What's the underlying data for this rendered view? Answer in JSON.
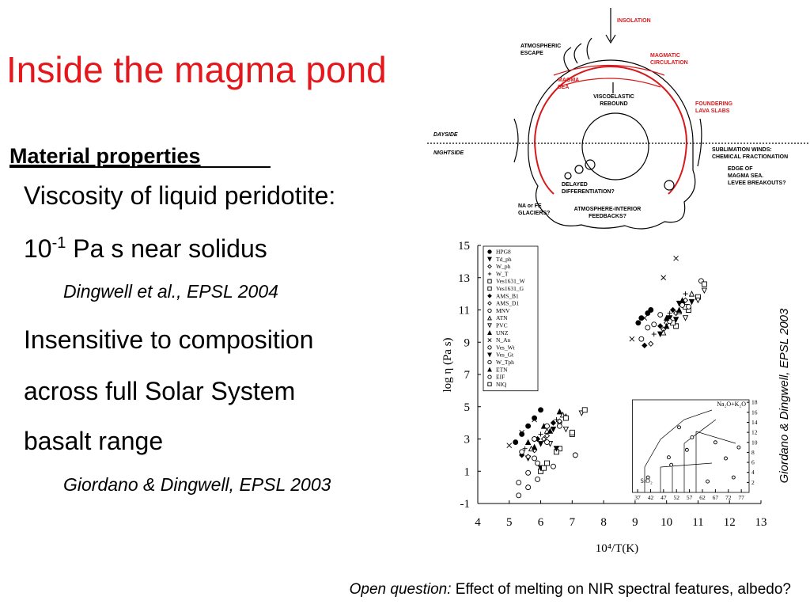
{
  "slide": {
    "title": "Inside the magma pond",
    "subtitle": "Material properties",
    "bullets": [
      {
        "text": "Viscosity of liquid peridotite:"
      },
      {
        "base": "10",
        "sup": "-1",
        "rest": " Pa s near solidus"
      },
      {
        "ref": "Dingwell et al., EPSL 2004"
      },
      {
        "text": "Insensitive to composition"
      },
      {
        "text": "across full Solar System"
      },
      {
        "text": "basalt range"
      },
      {
        "ref": "Giordano & Dingwell, EPSL 2003"
      }
    ],
    "side_caption": "Giordano & Dingwell, EPSL 2003",
    "footer": {
      "lead": "Open question:",
      "text": " Effect of melting on NIR spectral features, albedo?"
    }
  },
  "diagram": {
    "labels": [
      {
        "lines": [
          "INSOLATION"
        ],
        "color": "#d7191c"
      },
      {
        "lines": [
          "ATMOSPHERIC",
          "ESCAPE"
        ],
        "color": "#000000"
      },
      {
        "lines": [
          "MAGMATIC",
          "CIRCULATION"
        ],
        "color": "#d7191c"
      },
      {
        "lines": [
          "MAGMA",
          "SEA"
        ],
        "color": "#d7191c"
      },
      {
        "lines": [
          "VISCOELASTIC",
          "REBOUND"
        ],
        "color": "#000000"
      },
      {
        "lines": [
          "FOUNDERING",
          "LAVA SLABS"
        ],
        "color": "#d7191c"
      },
      {
        "lines": [
          "DAYSIDE"
        ],
        "color": "#000000"
      },
      {
        "lines": [
          "NIGHTSIDE"
        ],
        "color": "#000000"
      },
      {
        "lines": [
          "SUBLIMATION WINDS:",
          "CHEMICAL FRACTIONATION"
        ],
        "color": "#000000"
      },
      {
        "lines": [
          "EDGE OF",
          "MAGMA SEA.",
          "LEVEE BREAKOUTS?"
        ],
        "color": "#000000"
      },
      {
        "lines": [
          "DELAYED",
          "DIFFERENTIATION?"
        ],
        "color": "#000000"
      },
      {
        "lines": [
          "NA or FE",
          "GLACIERS?"
        ],
        "color": "#000000"
      },
      {
        "lines": [
          "ATMOSPHERE-INTERIOR",
          "FEEDBACKS?"
        ],
        "color": "#000000"
      }
    ]
  },
  "chart_data": [
    {
      "type": "scatter",
      "xlabel": "10⁴/T(K)",
      "ylabel": "log η (Pa s)",
      "xlim": [
        4,
        13
      ],
      "ylim": [
        -1,
        15
      ],
      "xticks": [
        4,
        5,
        6,
        7,
        8,
        9,
        10,
        11,
        12,
        13
      ],
      "yticks": [
        -1,
        1,
        3,
        5,
        7,
        9,
        11,
        13,
        15
      ],
      "legend": "upper left",
      "series": [
        {
          "name": "HPG8",
          "marker": "circle",
          "color": "#000000",
          "x": [
            5.2,
            5.4,
            5.6,
            5.8,
            6.0,
            9.1,
            9.2,
            9.4,
            9.5
          ],
          "values": [
            2.8,
            3.3,
            3.8,
            4.3,
            4.8,
            10.2,
            10.5,
            10.8,
            11.0
          ]
        },
        {
          "name": "Td_ph",
          "marker": "triangle-down",
          "color": "#000000",
          "x": [
            5.6,
            6.0,
            6.4,
            9.8,
            10.1,
            10.4
          ],
          "values": [
            1.8,
            2.7,
            3.6,
            9.5,
            10.5,
            11.4
          ]
        },
        {
          "name": "W_ph",
          "marker": "diamond-open",
          "color": "#000000",
          "x": [
            5.8,
            6.2,
            6.6,
            9.9,
            10.3,
            10.6
          ],
          "values": [
            2.3,
            3.2,
            4.0,
            9.8,
            10.8,
            11.6
          ]
        },
        {
          "name": "W_T",
          "marker": "plus",
          "color": "#000000",
          "x": [
            5.5,
            6.0,
            6.5,
            9.6,
            10.1,
            10.6
          ],
          "values": [
            2.4,
            3.3,
            4.2,
            9.5,
            10.8,
            12.0
          ]
        },
        {
          "name": "Ves1631_W",
          "marker": "square-open",
          "color": "#000000",
          "x": [
            6.2,
            6.6,
            7.0,
            10.3,
            10.7,
            11.0
          ],
          "values": [
            1.5,
            2.4,
            3.3,
            10.0,
            11.0,
            11.8
          ]
        },
        {
          "name": "Ves1631_G",
          "marker": "square-open",
          "color": "#000000",
          "x": [
            6.0,
            6.5,
            7.0,
            10.2,
            10.6
          ],
          "values": [
            1.0,
            2.2,
            3.4,
            10.2,
            11.2
          ]
        },
        {
          "name": "AMS_B1",
          "marker": "diamond",
          "color": "#000000",
          "x": [
            5.4,
            5.9,
            6.4,
            9.3,
            9.8,
            10.2
          ],
          "values": [
            2.0,
            3.0,
            4.0,
            8.8,
            10.0,
            11.0
          ]
        },
        {
          "name": "AMS_D1",
          "marker": "diamond-open",
          "color": "#000000",
          "x": [
            5.6,
            6.1,
            6.6,
            9.5,
            10.0,
            10.5
          ],
          "values": [
            1.9,
            3.0,
            4.1,
            8.9,
            10.2,
            11.4
          ]
        },
        {
          "name": "MNV",
          "marker": "circle-open",
          "color": "#000000",
          "x": [
            5.3,
            5.6,
            5.9,
            9.2,
            9.6
          ],
          "values": [
            0.3,
            0.9,
            1.5,
            9.2,
            10.1
          ]
        },
        {
          "name": "ATN",
          "marker": "triangle-up-open",
          "color": "#000000",
          "x": [
            5.7,
            6.2,
            6.7,
            9.9,
            10.4,
            10.8
          ],
          "values": [
            2.4,
            3.5,
            4.5,
            9.6,
            10.9,
            12.0
          ]
        },
        {
          "name": "PVC",
          "marker": "triangle-down-open",
          "color": "#000000",
          "x": [
            6.3,
            6.8,
            7.3,
            10.6,
            11.0,
            11.2
          ],
          "values": [
            2.7,
            3.6,
            4.6,
            10.5,
            11.6,
            12.2
          ]
        },
        {
          "name": "UNZ",
          "marker": "triangle-up",
          "color": "#000000",
          "x": [
            5.8,
            6.3,
            6.8,
            10.0,
            10.4
          ],
          "values": [
            2.5,
            3.5,
            4.4,
            10.0,
            11.0
          ]
        },
        {
          "name": "N_An",
          "marker": "x",
          "color": "#000000",
          "x": [
            5.0,
            5.4,
            5.8,
            8.9,
            9.3,
            9.9,
            10.3
          ],
          "values": [
            2.6,
            3.4,
            4.2,
            9.2,
            10.5,
            13.0,
            14.2
          ]
        },
        {
          "name": "Ves_Wt",
          "marker": "circle-open",
          "color": "#000000",
          "x": [
            5.8,
            6.2,
            6.6,
            10.1,
            10.5
          ],
          "values": [
            1.8,
            2.8,
            3.8,
            10.3,
            11.3
          ]
        },
        {
          "name": "Ves_Gt",
          "marker": "triangle-down",
          "color": "#000000",
          "x": [
            6.0,
            6.5,
            10.3,
            10.8
          ],
          "values": [
            1.2,
            2.4,
            10.4,
            11.5
          ]
        },
        {
          "name": "W_Tph",
          "marker": "circle-open",
          "color": "#000000",
          "x": [
            5.3,
            5.6,
            5.9,
            6.4,
            7.1,
            10.7,
            11.1
          ],
          "values": [
            -0.5,
            0.0,
            0.5,
            1.3,
            2.0,
            11.2,
            12.8
          ]
        },
        {
          "name": "ETN",
          "marker": "triangle-up",
          "color": "#000000",
          "x": [
            5.6,
            6.1,
            6.6,
            10.0,
            10.5
          ],
          "values": [
            2.8,
            3.8,
            4.7,
            10.5,
            11.6
          ]
        },
        {
          "name": "EIF",
          "marker": "circle-open",
          "color": "#000000",
          "x": [
            5.4,
            5.8,
            6.2,
            9.4,
            9.8
          ],
          "values": [
            2.2,
            3.0,
            3.8,
            9.9,
            10.7
          ]
        },
        {
          "name": "NIQ",
          "marker": "square-open",
          "color": "#000000",
          "x": [
            6.1,
            6.8,
            7.4,
            11.2
          ],
          "values": [
            1.2,
            4.3,
            4.8,
            12.6
          ]
        }
      ]
    },
    {
      "type": "scatter",
      "xlabel": "SiO₂",
      "ylabel": "Na₂O+K₂O",
      "xlim": [
        35,
        80
      ],
      "ylim": [
        0,
        18.5
      ],
      "xticks": [
        37,
        42,
        47,
        52,
        57,
        62,
        67,
        72,
        77
      ],
      "yticks": [
        2,
        4,
        6,
        8,
        10,
        12,
        14,
        16,
        18
      ],
      "series": [
        {
          "marker": "circle-open",
          "color": "#000000",
          "x": [
            41,
            49,
            50,
            53,
            56,
            58,
            64,
            67,
            71,
            74,
            76
          ],
          "values": [
            3.0,
            7.0,
            5.5,
            13.0,
            8.5,
            11.0,
            2.2,
            10.0,
            6.8,
            3.0,
            9.0
          ]
        }
      ]
    }
  ]
}
